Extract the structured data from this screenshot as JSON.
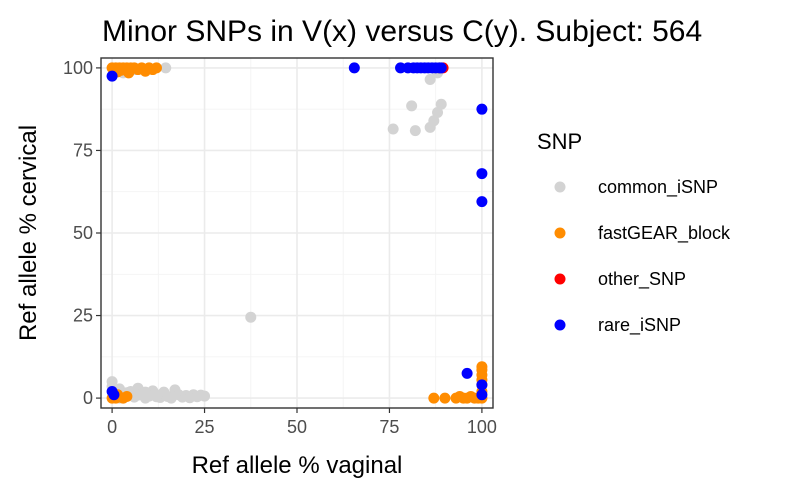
{
  "chart_data": {
    "type": "scatter",
    "title": "Minor SNPs in V(x) versus C(y). Subject: 564",
    "xlabel": "Ref allele % vaginal",
    "ylabel": "Ref allele % cervical",
    "xlim": [
      -3,
      103
    ],
    "ylim": [
      -3,
      103
    ],
    "x_ticks": [
      0,
      25,
      50,
      75,
      100
    ],
    "y_ticks": [
      0,
      25,
      50,
      75,
      100
    ],
    "x_tick_labels": [
      "0",
      "25",
      "50",
      "75",
      "100"
    ],
    "y_tick_labels": [
      "0",
      "25",
      "50",
      "75",
      "100"
    ],
    "grid": true,
    "legend": {
      "title": "SNP",
      "position": "right"
    },
    "series": [
      {
        "name": "common_iSNP",
        "color": "#d3d3d3",
        "points": [
          [
            0,
            5
          ],
          [
            0.5,
            2.5
          ],
          [
            1,
            1
          ],
          [
            1.5,
            0.5
          ],
          [
            2,
            0
          ],
          [
            3,
            1.5
          ],
          [
            4,
            0.8
          ],
          [
            5,
            2
          ],
          [
            6,
            0.3
          ],
          [
            7,
            3
          ],
          [
            8,
            1.2
          ],
          [
            9,
            0
          ],
          [
            10,
            0.6
          ],
          [
            11,
            2.2
          ],
          [
            12,
            1
          ],
          [
            13,
            0.2
          ],
          [
            14,
            1.8
          ],
          [
            15,
            0.5
          ],
          [
            16,
            0
          ],
          [
            17,
            2.5
          ],
          [
            18,
            1
          ],
          [
            19,
            0.3
          ],
          [
            20,
            0.8
          ],
          [
            21,
            0.1
          ],
          [
            22,
            1
          ],
          [
            23,
            0.4
          ],
          [
            24,
            0.9
          ],
          [
            25,
            0.6
          ],
          [
            3,
            0
          ],
          [
            6,
            1
          ],
          [
            9,
            1.8
          ],
          [
            12,
            0.4
          ],
          [
            0,
            3.5
          ],
          [
            2,
            2.8
          ],
          [
            4,
            1.6
          ],
          [
            7,
            0.9
          ],
          [
            37.5,
            24.5
          ],
          [
            76,
            81.5
          ],
          [
            81,
            88.5
          ],
          [
            82,
            81
          ],
          [
            86,
            82
          ],
          [
            87,
            84
          ],
          [
            88,
            86.5
          ],
          [
            89,
            89
          ],
          [
            86,
            96.5
          ],
          [
            88,
            98.5
          ],
          [
            85,
            100
          ],
          [
            87,
            100
          ],
          [
            14.5,
            100
          ],
          [
            6,
            99.5
          ],
          [
            3,
            98.5
          ],
          [
            1,
            100
          ],
          [
            0,
            97.5
          ]
        ]
      },
      {
        "name": "fastGEAR_block",
        "color": "#ff8c00",
        "points": [
          [
            0,
            100
          ],
          [
            0.5,
            99
          ],
          [
            1,
            100
          ],
          [
            1.5,
            98.8
          ],
          [
            2,
            100
          ],
          [
            2.5,
            99.3
          ],
          [
            3,
            100
          ],
          [
            3.5,
            99.8
          ],
          [
            4,
            100
          ],
          [
            4.5,
            98.5
          ],
          [
            5,
            100
          ],
          [
            6,
            100
          ],
          [
            7,
            99.5
          ],
          [
            8,
            100
          ],
          [
            9,
            99
          ],
          [
            10,
            100
          ],
          [
            11,
            99.5
          ],
          [
            12,
            100
          ],
          [
            88.5,
            100
          ],
          [
            0,
            0
          ],
          [
            0.5,
            0.5
          ],
          [
            1,
            0
          ],
          [
            1.5,
            1
          ],
          [
            2,
            0.3
          ],
          [
            3,
            0
          ],
          [
            4,
            0.5
          ],
          [
            87,
            0
          ],
          [
            90,
            0
          ],
          [
            93,
            0
          ],
          [
            94,
            0.5
          ],
          [
            95,
            0
          ],
          [
            96,
            0
          ],
          [
            97,
            0.5
          ],
          [
            98,
            0
          ],
          [
            99,
            0
          ],
          [
            100,
            0
          ],
          [
            100,
            2
          ],
          [
            100,
            4
          ],
          [
            100,
            5.5
          ],
          [
            100,
            7
          ],
          [
            100,
            8.5
          ],
          [
            100,
            9.5
          ]
        ]
      },
      {
        "name": "other_SNP",
        "color": "#ff0000",
        "points": [
          [
            89.5,
            100
          ]
        ]
      },
      {
        "name": "rare_iSNP",
        "color": "#0000ff",
        "points": [
          [
            65.5,
            100
          ],
          [
            78,
            100
          ],
          [
            80,
            100
          ],
          [
            81.5,
            100
          ],
          [
            82.5,
            100
          ],
          [
            83.5,
            100
          ],
          [
            84.5,
            100
          ],
          [
            85.5,
            100
          ],
          [
            86.5,
            100
          ],
          [
            87.5,
            100
          ],
          [
            88.5,
            100
          ],
          [
            89,
            100
          ],
          [
            100,
            87.5
          ],
          [
            100,
            68
          ],
          [
            100,
            59.5
          ],
          [
            96,
            7.5
          ],
          [
            100,
            4
          ],
          [
            100,
            1
          ],
          [
            0,
            97.5
          ],
          [
            0,
            2
          ],
          [
            0.5,
            1
          ]
        ]
      }
    ]
  }
}
